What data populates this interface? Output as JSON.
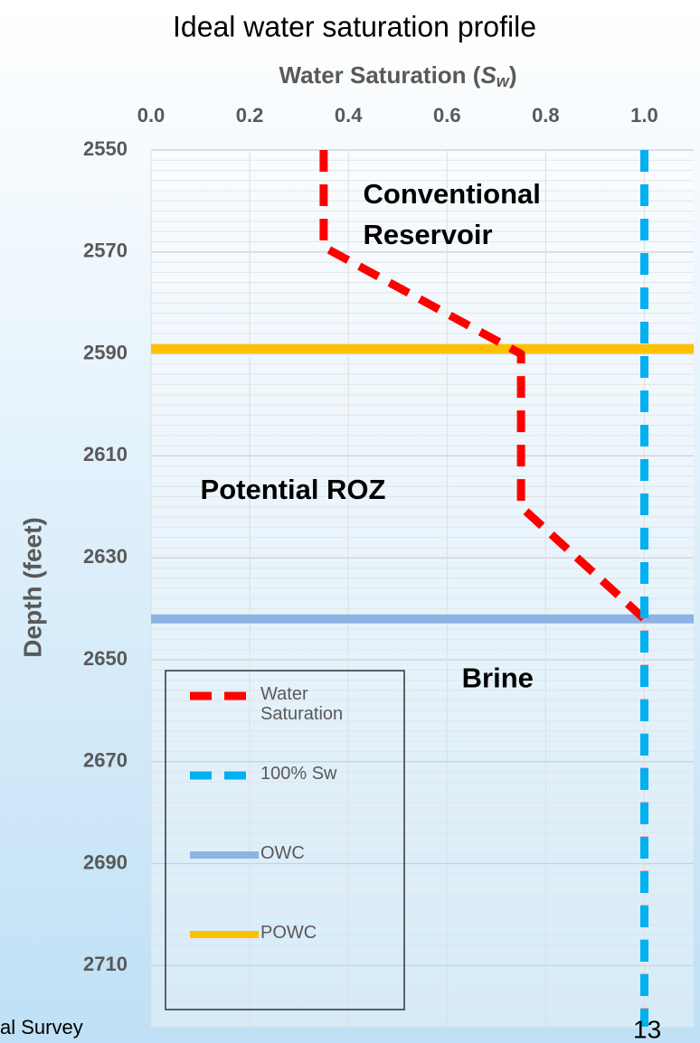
{
  "chart_data": {
    "type": "line",
    "title": "Ideal water saturation profile",
    "x_label_parts": [
      "Water Saturation (",
      "S",
      "w",
      ")"
    ],
    "y_label": "Depth (feet)",
    "xlim": [
      0,
      1.1
    ],
    "xticks": [
      {
        "value": 0,
        "label": "0.0"
      },
      0.2,
      0.4,
      0.6,
      0.8,
      {
        "value": 1,
        "label": "1.0"
      }
    ],
    "ylim": [
      2550,
      2722
    ],
    "yticks": [
      2550,
      2570,
      2590,
      2610,
      2630,
      2650,
      2670,
      2690,
      2710
    ],
    "y_inverted": true,
    "grid": true,
    "minor_grid_step": 2,
    "series": [
      {
        "name": "Water Saturation",
        "color": "#ff0000",
        "dash": true,
        "x": [
          0.35,
          0.35,
          0.75,
          0.75,
          1.0,
          1.0
        ],
        "y": [
          2550,
          2569,
          2590,
          2620,
          2642,
          2722
        ]
      },
      {
        "name": "100% Sw",
        "color": "#00b0f0",
        "dash": true,
        "x": [
          1.0,
          1.0
        ],
        "y": [
          2550,
          2722
        ]
      },
      {
        "name": "OWC",
        "color": "#8db3e2",
        "dash": false,
        "x": [
          0,
          1.1
        ],
        "y": [
          2642,
          2642
        ]
      },
      {
        "name": "POWC",
        "color": "#ffc000",
        "dash": false,
        "x": [
          0,
          1.1
        ],
        "y": [
          2589,
          2589
        ]
      }
    ],
    "annotations": [
      {
        "text": "Conventional",
        "x": 0.43,
        "y": 2559
      },
      {
        "text": "Reservoir",
        "x": 0.43,
        "y": 2567
      },
      {
        "text": "Potential ROZ",
        "x": 0.1,
        "y": 2617
      },
      {
        "text": "Brine",
        "x": 0.63,
        "y": 2654
      }
    ],
    "footer_left": "al Survey",
    "footer_right": "13"
  }
}
